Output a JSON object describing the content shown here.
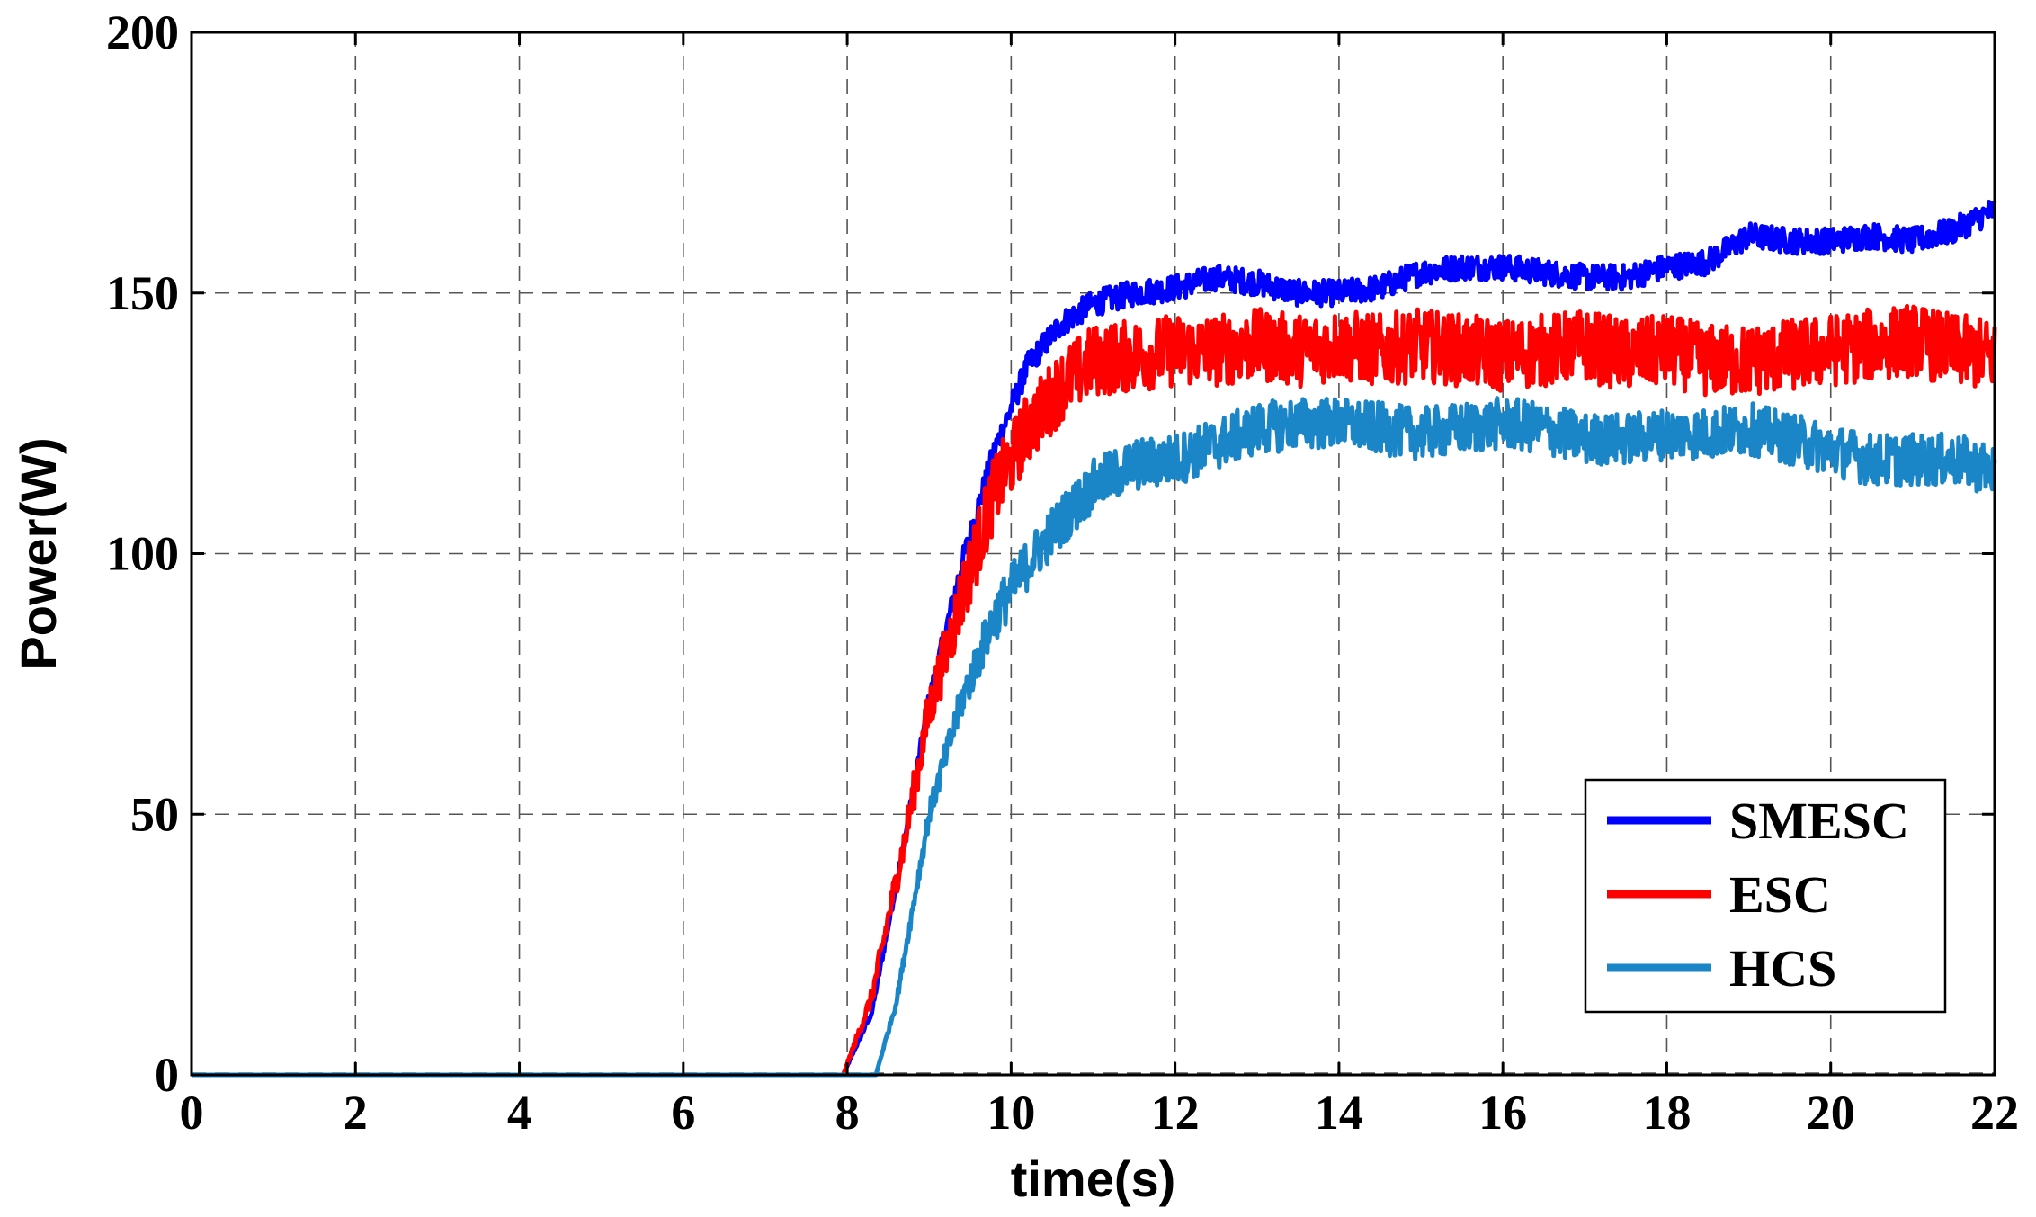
{
  "chart_data": {
    "type": "line",
    "title": "",
    "xlabel": "time(s)",
    "ylabel": "Power(W)",
    "xlim": [
      0,
      22
    ],
    "ylim": [
      0,
      200
    ],
    "xticks": [
      0,
      2,
      4,
      6,
      8,
      10,
      12,
      14,
      16,
      18,
      20,
      22
    ],
    "yticks": [
      0,
      50,
      100,
      150,
      200
    ],
    "grid": true,
    "grid_style": "dashed",
    "legend_position": "bottom-right",
    "series": [
      {
        "name": "SMESC",
        "color": "#0000ff",
        "noise": 2.5,
        "x": [
          0,
          7.95,
          8.3,
          8.7,
          9.0,
          9.4,
          9.8,
          10.2,
          10.6,
          11.0,
          11.5,
          12.0,
          12.5,
          13.0,
          13.5,
          14.0,
          14.5,
          15.0,
          15.5,
          16.0,
          16.5,
          17.0,
          17.5,
          18.0,
          18.5,
          19.0,
          19.5,
          20.0,
          20.5,
          21.0,
          21.5,
          22.0
        ],
        "y": [
          0,
          0,
          12,
          45,
          72,
          98,
          120,
          136,
          144,
          148,
          150,
          151,
          153,
          152,
          150,
          150,
          151,
          154,
          155,
          155,
          154,
          153,
          153,
          155,
          156,
          161,
          160,
          160,
          161,
          160,
          162,
          166
        ]
      },
      {
        "name": "ESC",
        "color": "#ff0000",
        "noise": 7,
        "x": [
          0,
          7.95,
          8.3,
          8.7,
          9.0,
          9.4,
          9.8,
          10.2,
          10.6,
          11.0,
          11.5,
          12.0,
          12.5,
          13.0,
          13.5,
          14.0,
          14.5,
          15.0,
          15.5,
          16.0,
          16.5,
          17.0,
          17.5,
          18.0,
          18.5,
          19.0,
          19.5,
          20.0,
          20.5,
          21.0,
          21.5,
          22.0
        ],
        "y": [
          0,
          0,
          15,
          45,
          70,
          92,
          112,
          124,
          132,
          137,
          138,
          139,
          139,
          140,
          139,
          140,
          139,
          140,
          139,
          138,
          139,
          140,
          138,
          139,
          137,
          137,
          138,
          139,
          140,
          141,
          139,
          138
        ]
      },
      {
        "name": "HCS",
        "color": "#1a86c8",
        "noise": 5,
        "x": [
          0,
          8.35,
          8.6,
          9.0,
          9.4,
          9.8,
          10.2,
          10.6,
          11.0,
          11.5,
          12.0,
          12.5,
          13.0,
          13.5,
          14.0,
          14.5,
          15.0,
          15.5,
          16.0,
          16.5,
          17.0,
          17.5,
          18.0,
          18.5,
          19.0,
          19.5,
          20.0,
          20.5,
          21.0,
          21.5,
          22.0
        ],
        "y": [
          0,
          0,
          14,
          50,
          72,
          88,
          98,
          106,
          113,
          117,
          118,
          121,
          124,
          125,
          125,
          124,
          123,
          124,
          125,
          124,
          122,
          122,
          123,
          123,
          124,
          122,
          120,
          118,
          118,
          118,
          116
        ]
      }
    ]
  }
}
